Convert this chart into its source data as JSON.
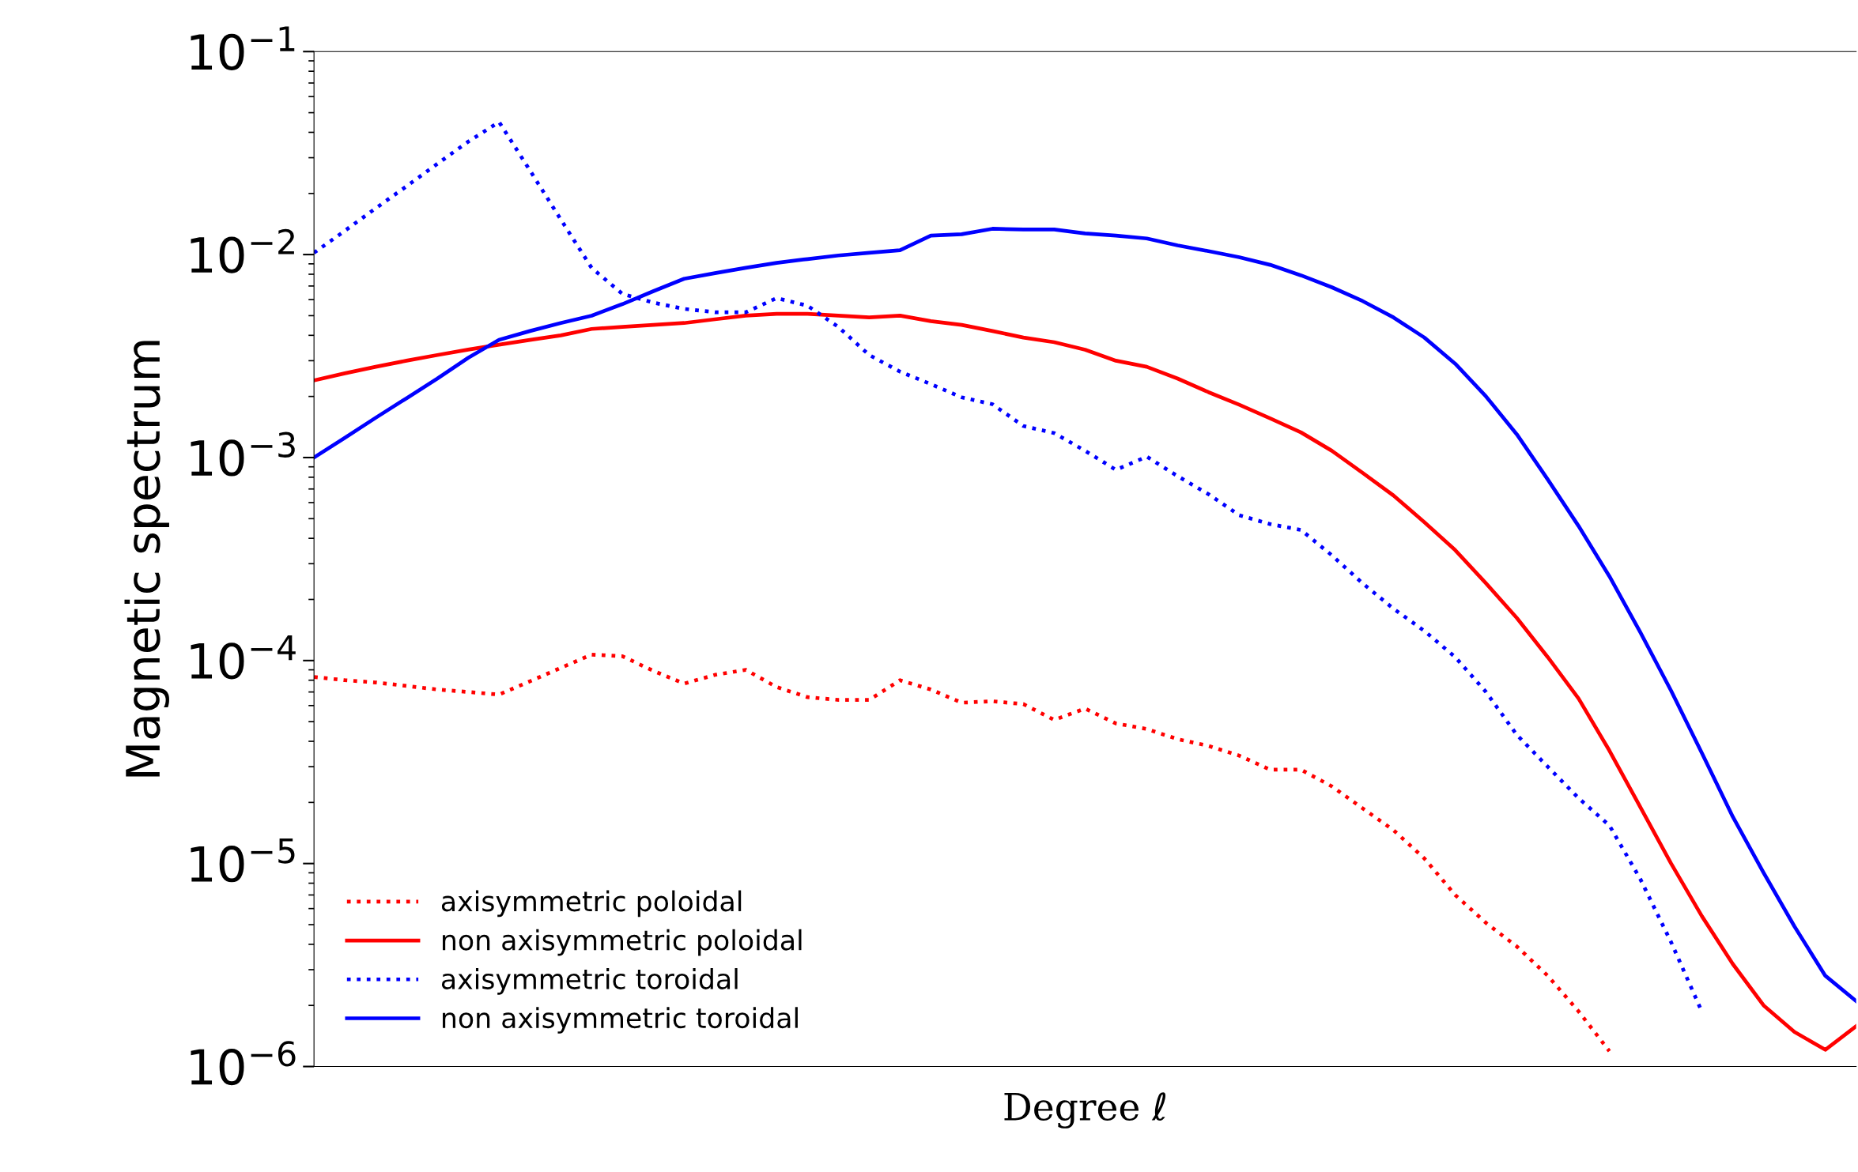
{
  "chart_data": {
    "type": "line",
    "xlabel": "Degree ℓ",
    "ylabel": "Magnetic spectrum",
    "log": "y",
    "grid": false,
    "legend": "bottom left",
    "categories": [
      null,
      null,
      null,
      null,
      null,
      null,
      null,
      null,
      null,
      null,
      null,
      null,
      null,
      null,
      null,
      null,
      null,
      null,
      null,
      null,
      null,
      null,
      null,
      null,
      null,
      null,
      null,
      null,
      null,
      null,
      null,
      null,
      null,
      null,
      null,
      null,
      null,
      null,
      null,
      null,
      null,
      null,
      null,
      null,
      null,
      null,
      null,
      null,
      null,
      null,
      null
    ],
    "ylim": [
      1e-06,
      0.1
    ],
    "yticks": [
      {
        "value": 1e-06,
        "label": "10$^{−6}$"
      },
      {
        "value": 1e-05,
        "label": "10$^{−5}$"
      },
      {
        "value": 0.0001,
        "label": "10$^{−4}$"
      },
      {
        "value": 0.001,
        "label": "10$^{−3}$"
      },
      {
        "value": 0.01,
        "label": "10$^{−2}$"
      },
      {
        "value": 0.1,
        "label": "10$^{−1}$"
      }
    ],
    "series": [
      {
        "name": "axisymmetric poloidal",
        "color": "#ff0000",
        "line_style": "dotted",
        "values": [
          8.3e-05,
          8e-05,
          7.8e-05,
          7.5e-05,
          7.2e-05,
          7e-05,
          6.8e-05,
          7.9e-05,
          9.2e-05,
          0.000107,
          0.000105,
          8.9e-05,
          7.7e-05,
          8.5e-05,
          9e-05,
          7.4e-05,
          6.6e-05,
          6.4e-05,
          6.4e-05,
          8e-05,
          7.2e-05,
          6.2e-05,
          6.3e-05,
          6.1e-05,
          5.1e-05,
          5.8e-05,
          4.9e-05,
          4.6e-05,
          4.1e-05,
          3.8e-05,
          3.4e-05,
          2.9e-05,
          2.9e-05,
          2.4e-05,
          1.87e-05,
          1.46e-05,
          1.06e-05,
          7e-06,
          5.1e-06,
          3.9e-06,
          2.8e-06,
          1.87e-06,
          1.19e-06,
          null,
          null,
          null,
          null,
          null,
          null,
          null,
          null
        ]
      },
      {
        "name": "non axisymmetric poloidal",
        "color": "#ff0000",
        "line_style": "solid",
        "values": [
          0.0024,
          0.0026,
          0.0028,
          0.003,
          0.0032,
          0.0034,
          0.0036,
          0.0038,
          0.004,
          0.0043,
          0.0044,
          0.0045,
          0.0046,
          0.0048,
          0.005,
          0.0051,
          0.0051,
          0.005,
          0.0049,
          0.005,
          0.0047,
          0.0045,
          0.0042,
          0.0039,
          0.0037,
          0.0034,
          0.003,
          0.0028,
          0.00245,
          0.0021,
          0.00182,
          0.00156,
          0.00133,
          0.00108,
          0.00084,
          0.00065,
          0.00048,
          0.00035,
          0.00024,
          0.000162,
          0.000104,
          6.5e-05,
          3.6e-05,
          1.9e-05,
          1e-05,
          5.5e-06,
          3.2e-06,
          2e-06,
          1.48e-06,
          1.21e-06,
          1.58e-06
        ]
      },
      {
        "name": "axisymmetric toroidal",
        "color": "#0000ff",
        "line_style": "dotted",
        "values": [
          0.0102,
          0.0131,
          0.0169,
          0.0217,
          0.028,
          0.036,
          0.045,
          0.026,
          0.0149,
          0.0086,
          0.0064,
          0.0058,
          0.0054,
          0.0052,
          0.0052,
          0.0061,
          0.0056,
          0.0044,
          0.0032,
          0.00265,
          0.0023,
          0.00198,
          0.00183,
          0.00143,
          0.00132,
          0.00108,
          0.00087,
          0.00101,
          0.00081,
          0.00066,
          0.00052,
          0.00047,
          0.00044,
          0.00033,
          0.00024,
          0.00018,
          0.00014,
          0.000104,
          7e-05,
          4.3e-05,
          3e-05,
          2.1e-05,
          1.54e-05,
          8.4e-06,
          4.1e-06,
          1.86e-06,
          null,
          null,
          null,
          null,
          null
        ]
      },
      {
        "name": "non axisymmetric toroidal",
        "color": "#0000ff",
        "line_style": "solid",
        "values": [
          0.001,
          0.00125,
          0.00157,
          0.00196,
          0.00245,
          0.0031,
          0.0038,
          0.0042,
          0.0046,
          0.005,
          0.0057,
          0.0066,
          0.0076,
          0.0081,
          0.0086,
          0.0091,
          0.0095,
          0.0099,
          0.0102,
          0.0105,
          0.0124,
          0.0126,
          0.0134,
          0.0133,
          0.0133,
          0.0127,
          0.0124,
          0.012,
          0.0111,
          0.0104,
          0.0097,
          0.0089,
          0.0079,
          0.0069,
          0.0059,
          0.0049,
          0.0039,
          0.0029,
          0.002,
          0.0013,
          0.00078,
          0.00046,
          0.00026,
          0.000138,
          7.1e-05,
          3.5e-05,
          1.7e-05,
          9e-06,
          4.9e-06,
          2.8e-06,
          2.1e-06
        ]
      }
    ]
  }
}
